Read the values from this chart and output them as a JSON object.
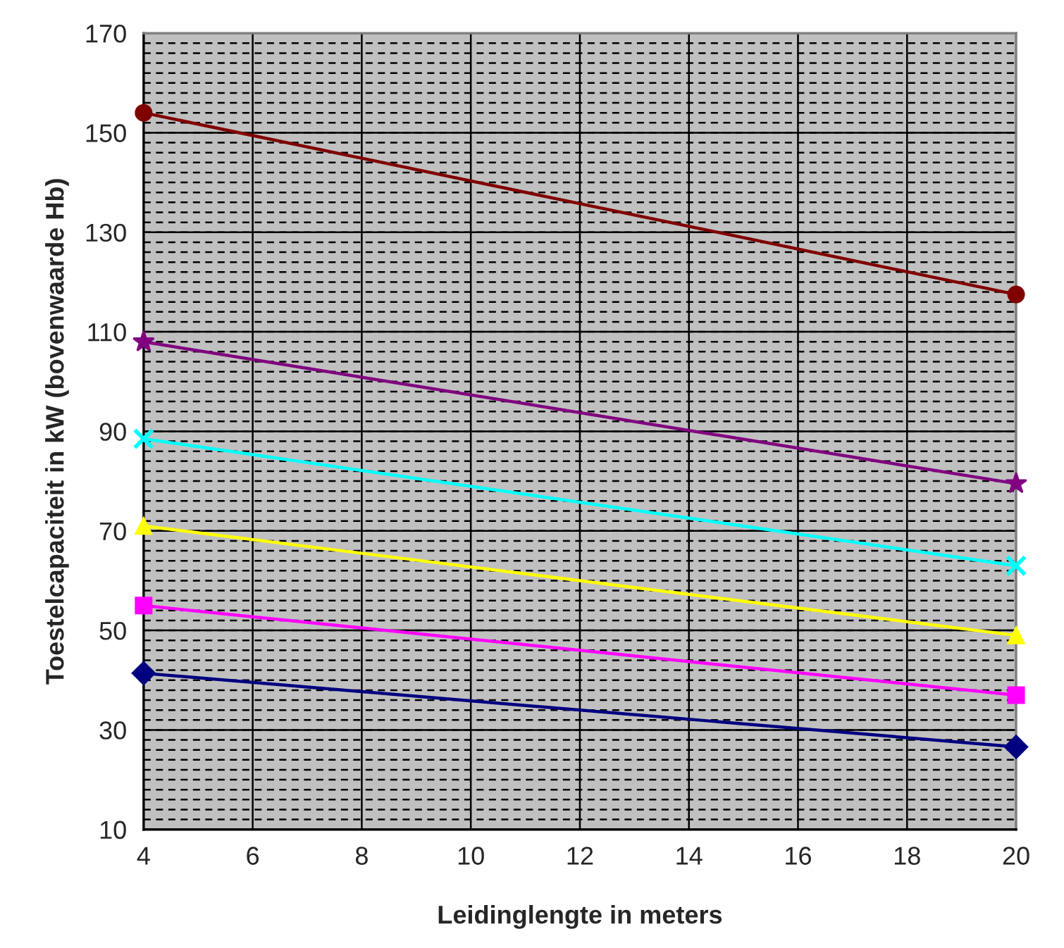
{
  "chart_data": {
    "type": "line",
    "xlabel": "Leidinglengte in meters",
    "ylabel": "Toestelcapaciteit in kW (bovenwaarde Hb)",
    "x": [
      4,
      20
    ],
    "series": [
      {
        "color": "#000080",
        "marker": "diamond",
        "values": [
          41.4,
          26.6
        ]
      },
      {
        "color": "#ff00ff",
        "marker": "square",
        "values": [
          55,
          37
        ]
      },
      {
        "color": "#ffff00",
        "marker": "triangle",
        "values": [
          71,
          49
        ]
      },
      {
        "color": "#00ffff",
        "marker": "cross",
        "values": [
          88.5,
          63
        ]
      },
      {
        "color": "#800080",
        "marker": "star",
        "values": [
          108,
          79.5
        ]
      },
      {
        "color": "#800000",
        "marker": "circle",
        "values": [
          154,
          117.5
        ]
      }
    ],
    "xlim": [
      4,
      20
    ],
    "xticks": [
      4,
      6,
      8,
      10,
      12,
      14,
      16,
      18,
      20
    ],
    "ylim": [
      10,
      170
    ],
    "yticks": [
      10,
      30,
      50,
      70,
      90,
      110,
      130,
      150,
      170
    ],
    "grid": true,
    "legend": false,
    "line_style": "solid"
  }
}
